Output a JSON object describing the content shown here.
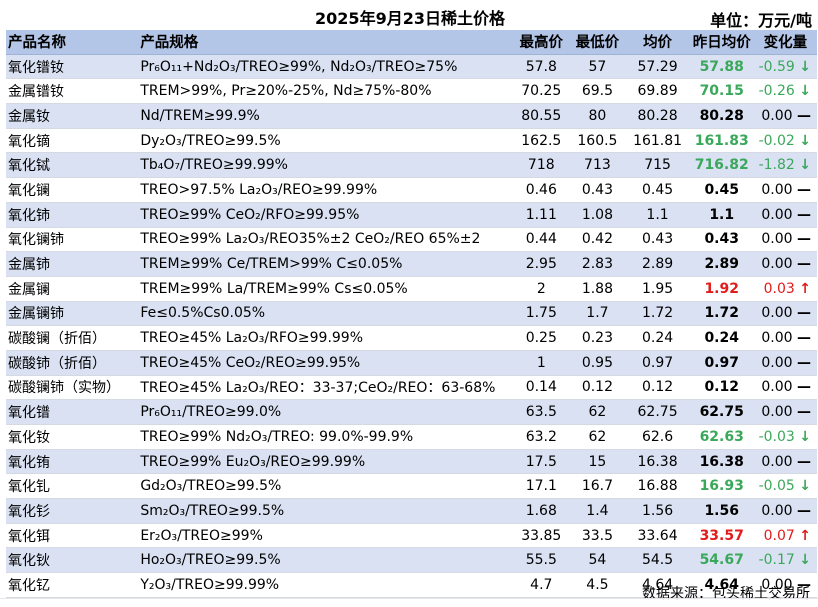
{
  "header": {
    "title": "2025年9月23日稀土价格",
    "unit": "单位：万元/吨"
  },
  "columns": [
    "产品名称",
    "产品规格",
    "最高价",
    "最低价",
    "均价",
    "昨日均价",
    "变化量"
  ],
  "rows": [
    {
      "name": "氧化镨钕",
      "spec": "Pr₆O₁₁+Nd₂O₃/TREO≥99%, Nd₂O₃/TREO≥75%",
      "high": "57.8",
      "low": "57",
      "avg": "57.29",
      "prev": "57.88",
      "change": "-0.59",
      "arrow": "↓",
      "trend": "down"
    },
    {
      "name": "金属镨钕",
      "spec": "TREM>99%, Pr≥20%-25%, Nd≥75%-80%",
      "high": "70.25",
      "low": "69.5",
      "avg": "69.89",
      "prev": "70.15",
      "change": "-0.26",
      "arrow": "↓",
      "trend": "down"
    },
    {
      "name": "金属钕",
      "spec": "Nd/TREM≥99.9%",
      "high": "80.55",
      "low": "80",
      "avg": "80.28",
      "prev": "80.28",
      "change": "0.00",
      "arrow": "—",
      "trend": "flat"
    },
    {
      "name": "氧化镝",
      "spec": "Dy₂O₃/TREO≥99.5%",
      "high": "162.5",
      "low": "160.5",
      "avg": "161.81",
      "prev": "161.83",
      "change": "-0.02",
      "arrow": "↓",
      "trend": "down"
    },
    {
      "name": "氧化铽",
      "spec": "Tb₄O₇/TREO≥99.99%",
      "high": "718",
      "low": "713",
      "avg": "715",
      "prev": "716.82",
      "change": "-1.82",
      "arrow": "↓",
      "trend": "down"
    },
    {
      "name": "氧化镧",
      "spec": "TREO>97.5% La₂O₃/REO≥99.99%",
      "high": "0.46",
      "low": "0.43",
      "avg": "0.45",
      "prev": "0.45",
      "change": "0.00",
      "arrow": "—",
      "trend": "flat"
    },
    {
      "name": "氧化铈",
      "spec": "TREO≥99% CeO₂/RFO≥99.95%",
      "high": "1.11",
      "low": "1.08",
      "avg": "1.1",
      "prev": "1.1",
      "change": "0.00",
      "arrow": "—",
      "trend": "flat"
    },
    {
      "name": "氧化镧铈",
      "spec": "TREO≥99% La₂O₃/REO35%±2 CeO₂/REO 65%±2",
      "high": "0.44",
      "low": "0.42",
      "avg": "0.43",
      "prev": "0.43",
      "change": "0.00",
      "arrow": "—",
      "trend": "flat"
    },
    {
      "name": "金属铈",
      "spec": "TREM≥99% Ce/TREM>99% C≤0.05%",
      "high": "2.95",
      "low": "2.83",
      "avg": "2.89",
      "prev": "2.89",
      "change": "0.00",
      "arrow": "—",
      "trend": "flat"
    },
    {
      "name": "金属镧",
      "spec": "TREM≥99% La/TREM≥99% Cs≤0.05%",
      "high": "2",
      "low": "1.88",
      "avg": "1.95",
      "prev": "1.92",
      "change": "0.03",
      "arrow": "↑",
      "trend": "up"
    },
    {
      "name": "金属镧铈",
      "spec": "Fe≤0.5%Cs0.05%",
      "high": "1.75",
      "low": "1.7",
      "avg": "1.72",
      "prev": "1.72",
      "change": "0.00",
      "arrow": "—",
      "trend": "flat"
    },
    {
      "name": "碳酸镧（折佰）",
      "spec": "TREO≥45% La₂O₃/RFO≥99.99%",
      "high": "0.25",
      "low": "0.23",
      "avg": "0.24",
      "prev": "0.24",
      "change": "0.00",
      "arrow": "—",
      "trend": "flat"
    },
    {
      "name": "碳酸铈（折佰）",
      "spec": "TREO≥45% CeO₂/REO≥99.95%",
      "high": "1",
      "low": "0.95",
      "avg": "0.97",
      "prev": "0.97",
      "change": "0.00",
      "arrow": "—",
      "trend": "flat"
    },
    {
      "name": "碳酸镧铈（实物）",
      "spec": "TREO≥45% La₂O₃/REO：33-37;CeO₂/REO：63-68%",
      "high": "0.14",
      "low": "0.12",
      "avg": "0.12",
      "prev": "0.12",
      "change": "0.00",
      "arrow": "—",
      "trend": "flat"
    },
    {
      "name": "氧化镨",
      "spec": "Pr₆O₁₁/TREO≥99.0%",
      "high": "63.5",
      "low": "62",
      "avg": "62.75",
      "prev": "62.75",
      "change": "0.00",
      "arrow": "—",
      "trend": "flat"
    },
    {
      "name": "氧化钕",
      "spec": "TREO≥99% Nd₂O₃/TREO: 99.0%-99.9%",
      "high": "63.2",
      "low": "62",
      "avg": "62.6",
      "prev": "62.63",
      "change": "-0.03",
      "arrow": "↓",
      "trend": "down"
    },
    {
      "name": "氧化铕",
      "spec": "TREO≥99% Eu₂O₃/REO≥99.99%",
      "high": "17.5",
      "low": "15",
      "avg": "16.38",
      "prev": "16.38",
      "change": "0.00",
      "arrow": "—",
      "trend": "flat"
    },
    {
      "name": "氧化钆",
      "spec": "Gd₂O₃/TREO≥99.5%",
      "high": "17.1",
      "low": "16.7",
      "avg": "16.88",
      "prev": "16.93",
      "change": "-0.05",
      "arrow": "↓",
      "trend": "down"
    },
    {
      "name": "氧化钐",
      "spec": "Sm₂O₃/TREO≥99.5%",
      "high": "1.68",
      "low": "1.4",
      "avg": "1.56",
      "prev": "1.56",
      "change": "0.00",
      "arrow": "—",
      "trend": "flat"
    },
    {
      "name": "氧化铒",
      "spec": "Er₂O₃/TREO≥99%",
      "high": "33.85",
      "low": "33.5",
      "avg": "33.64",
      "prev": "33.57",
      "change": "0.07",
      "arrow": "↑",
      "trend": "up"
    },
    {
      "name": "氧化钬",
      "spec": "Ho₂O₃/TREO≥99.5%",
      "high": "55.5",
      "low": "54",
      "avg": "54.5",
      "prev": "54.67",
      "change": "-0.17",
      "arrow": "↓",
      "trend": "down"
    },
    {
      "name": "氧化钇",
      "spec": "Y₂O₃/TREO≥99.99%",
      "high": "4.7",
      "low": "4.5",
      "avg": "4.64",
      "prev": "4.64",
      "change": "0.00",
      "arrow": "—",
      "trend": "flat"
    }
  ],
  "footer": {
    "source": "数据来源：包头稀土交易所"
  },
  "colors": {
    "header_bg": "#b4c6e7",
    "alt_row_bg": "#d9e1f2",
    "down": "#3aa85a",
    "up": "#e21b1b"
  }
}
